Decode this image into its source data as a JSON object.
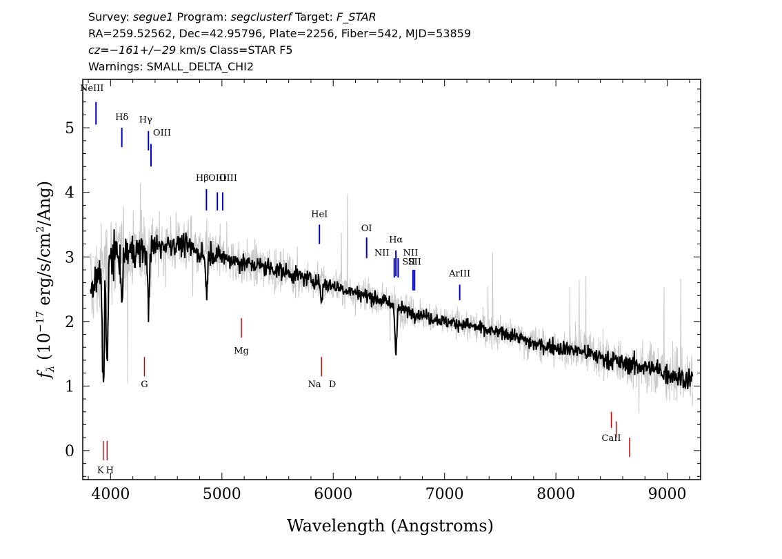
{
  "header": {
    "line1": {
      "survey_label": "Survey: ",
      "survey": "segue1",
      "program_label": " Program: ",
      "program": "segclusterf",
      "target_label": " Target: ",
      "target": "F_STAR"
    },
    "line2": "RA=259.52562, Dec=42.95796, Plate=2256, Fiber=542, MJD=53859",
    "line3": {
      "cz_label": "cz=",
      "cz_value": "−161+/−29",
      "cz_rest": " km/s Class=STAR F5"
    },
    "line4": "Warnings: SMALL_DELTA_CHI2"
  },
  "chart_data": {
    "type": "line",
    "xlabel": "Wavelength (Angstroms)",
    "ylabel": "f_λ (10^-17 erg/s/cm^2/Ang)",
    "xlim": [
      3750,
      9300
    ],
    "ylim": [
      -0.45,
      5.75
    ],
    "xticks": [
      4000,
      5000,
      6000,
      7000,
      8000,
      9000
    ],
    "xtick_labels": [
      "4000",
      "5000",
      "6000",
      "7000",
      "8000",
      "9000"
    ],
    "yticks": [
      0,
      1,
      2,
      3,
      4,
      5
    ],
    "ytick_labels": [
      "0",
      "1",
      "2",
      "3",
      "4",
      "5"
    ],
    "grid": false,
    "colors": {
      "flux": "#000000",
      "noise": "#c8c8c8",
      "emission": "#0000cc",
      "absorption": "#cc0000"
    },
    "series": [
      {
        "style": "smoothed-flux",
        "x": [
          3820,
          3860,
          3900,
          3950,
          4000,
          4100,
          4200,
          4300,
          4400,
          4500,
          4600,
          4700,
          4800,
          4900,
          5000,
          5200,
          5400,
          5600,
          5800,
          6000,
          6200,
          6400,
          6550,
          6600,
          6800,
          7000,
          7200,
          7400,
          7600,
          7800,
          8000,
          8200,
          8400,
          8600,
          8800,
          9000,
          9100,
          9200,
          9230
        ],
        "y": [
          2.4,
          2.6,
          2.7,
          2.9,
          3.0,
          3.05,
          3.1,
          3.1,
          3.15,
          3.2,
          3.2,
          3.15,
          3.05,
          3.05,
          3.0,
          2.9,
          2.85,
          2.75,
          2.65,
          2.55,
          2.45,
          2.35,
          2.25,
          2.2,
          2.1,
          2.0,
          1.95,
          1.85,
          1.8,
          1.65,
          1.6,
          1.55,
          1.45,
          1.35,
          1.3,
          1.2,
          1.15,
          1.1,
          1.1
        ]
      },
      {
        "style": "noise-envelope",
        "x": [
          3820,
          4000,
          4200,
          4400,
          4600,
          4800,
          5000,
          5500,
          6000,
          6500,
          7000,
          7500,
          8000,
          8500,
          9000,
          9230
        ],
        "y": [
          1.0,
          1.0,
          0.8,
          0.7,
          0.6,
          0.55,
          0.5,
          0.45,
          0.4,
          0.35,
          0.35,
          0.35,
          0.4,
          0.5,
          0.55,
          0.6
        ]
      }
    ],
    "emission_lines": [
      {
        "label": "NeIII",
        "wave": 3869
      },
      {
        "label": "Hδ",
        "wave": 4101
      },
      {
        "label": "Hγ",
        "wave": 4340
      },
      {
        "label": "OIII",
        "wave": 4363
      },
      {
        "label": "Hβ",
        "wave": 4861
      },
      {
        "label": "OIII",
        "wave": 4959
      },
      {
        "label": "OIII",
        "wave": 5007
      },
      {
        "label": "HeI",
        "wave": 5876
      },
      {
        "label": "OI",
        "wave": 6300
      },
      {
        "label": "NII",
        "wave": 6548
      },
      {
        "label": "Hα",
        "wave": 6563
      },
      {
        "label": "NII",
        "wave": 6583
      },
      {
        "label": "SII",
        "wave": 6716
      },
      {
        "label": "SII",
        "wave": 6731
      },
      {
        "label": "ArIII",
        "wave": 7136
      }
    ],
    "absorption_lines": [
      {
        "label": "K",
        "wave": 3934
      },
      {
        "label": "H",
        "wave": 3969
      },
      {
        "label": "G",
        "wave": 4304
      },
      {
        "label": "Mg",
        "wave": 5175
      },
      {
        "label": "Na",
        "wave": 5894
      },
      {
        "label": "D",
        "wave": 5894
      },
      {
        "label": "CaII",
        "wave": 8498
      },
      {
        "label": "CaII",
        "wave": 8542
      },
      {
        "label": "CaII",
        "wave": 8662
      }
    ]
  }
}
